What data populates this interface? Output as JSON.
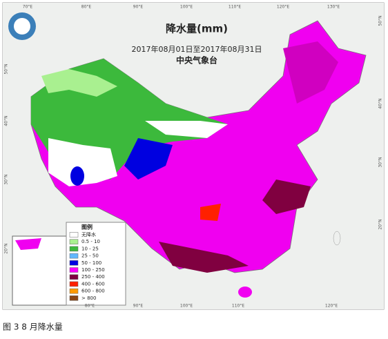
{
  "header": {
    "title": "降水量(mm)",
    "period": "2017年08月01日至2017年08月31日",
    "source": "中央气象台"
  },
  "legend": {
    "title": "图例",
    "items": [
      {
        "label": "无降水",
        "color": "#ffffff"
      },
      {
        "label": "0.5 - 10",
        "color": "#a9f090"
      },
      {
        "label": "10 - 25",
        "color": "#3cb93c"
      },
      {
        "label": "25 - 50",
        "color": "#62b8ff"
      },
      {
        "label": "50 - 100",
        "color": "#0000e0"
      },
      {
        "label": "100 - 250",
        "color": "#fa00fa"
      },
      {
        "label": "250 - 400",
        "color": "#800040"
      },
      {
        "label": "400 - 600",
        "color": "#ff2000"
      },
      {
        "label": "600 - 800",
        "color": "#ff9a00"
      },
      {
        "label": "> 800",
        "color": "#8b4513"
      }
    ]
  },
  "axes": {
    "top": [
      "70°E",
      "80°E",
      "90°E",
      "100°E",
      "110°E",
      "120°E",
      "130°E"
    ],
    "bottom": [
      "80°E",
      "90°E",
      "100°E",
      "110°E",
      "120°E"
    ],
    "left": [
      "50°N",
      "40°N",
      "30°N",
      "20°N"
    ],
    "right": [
      "50°N",
      "40°N",
      "30°N",
      "20°N"
    ]
  },
  "caption": "图 3 8 月降水量"
}
